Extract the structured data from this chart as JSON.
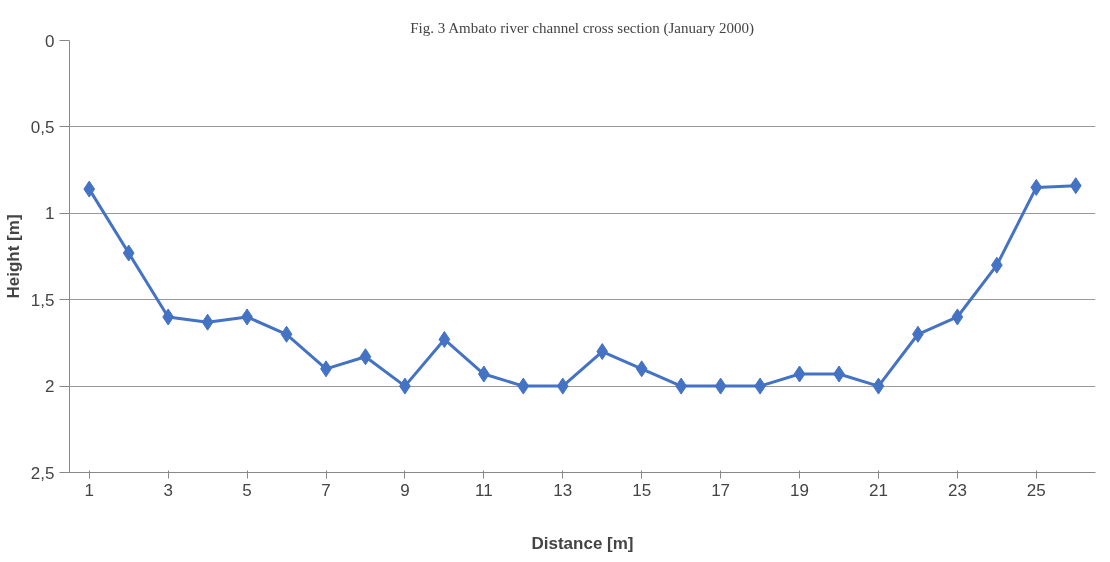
{
  "chart_data": {
    "type": "line",
    "title": "Fig. 3 Ambato river channel cross section (January 2000)",
    "xlabel": "Distance [m]",
    "ylabel": "Height [m]",
    "x": [
      1,
      2,
      3,
      4,
      5,
      6,
      7,
      8,
      9,
      10,
      11,
      12,
      13,
      14,
      15,
      16,
      17,
      18,
      19,
      20,
      21,
      22,
      23,
      24,
      25,
      26
    ],
    "xlim": [
      0.5,
      26.5
    ],
    "xticks": [
      1,
      3,
      5,
      7,
      9,
      11,
      13,
      15,
      17,
      19,
      21,
      23,
      25
    ],
    "series": [
      {
        "color": "#4472c4",
        "values": [
          0.86,
          1.23,
          1.6,
          1.63,
          1.6,
          1.7,
          1.9,
          1.83,
          2.0,
          1.73,
          1.93,
          2.0,
          2.0,
          1.8,
          1.9,
          2.0,
          2.0,
          2.0,
          1.93,
          1.93,
          2.0,
          1.7,
          1.6,
          1.3,
          0.85,
          0.84
        ]
      }
    ],
    "ylim": [
      2.5,
      0
    ],
    "yticks": [
      0,
      {
        "value": 0.5,
        "label": "0,5"
      },
      1,
      {
        "value": 1.5,
        "label": "1,5"
      },
      2,
      {
        "value": 2.5,
        "label": "2,5"
      }
    ],
    "grid": "y",
    "marker": "diamond",
    "line_style": "solid"
  }
}
